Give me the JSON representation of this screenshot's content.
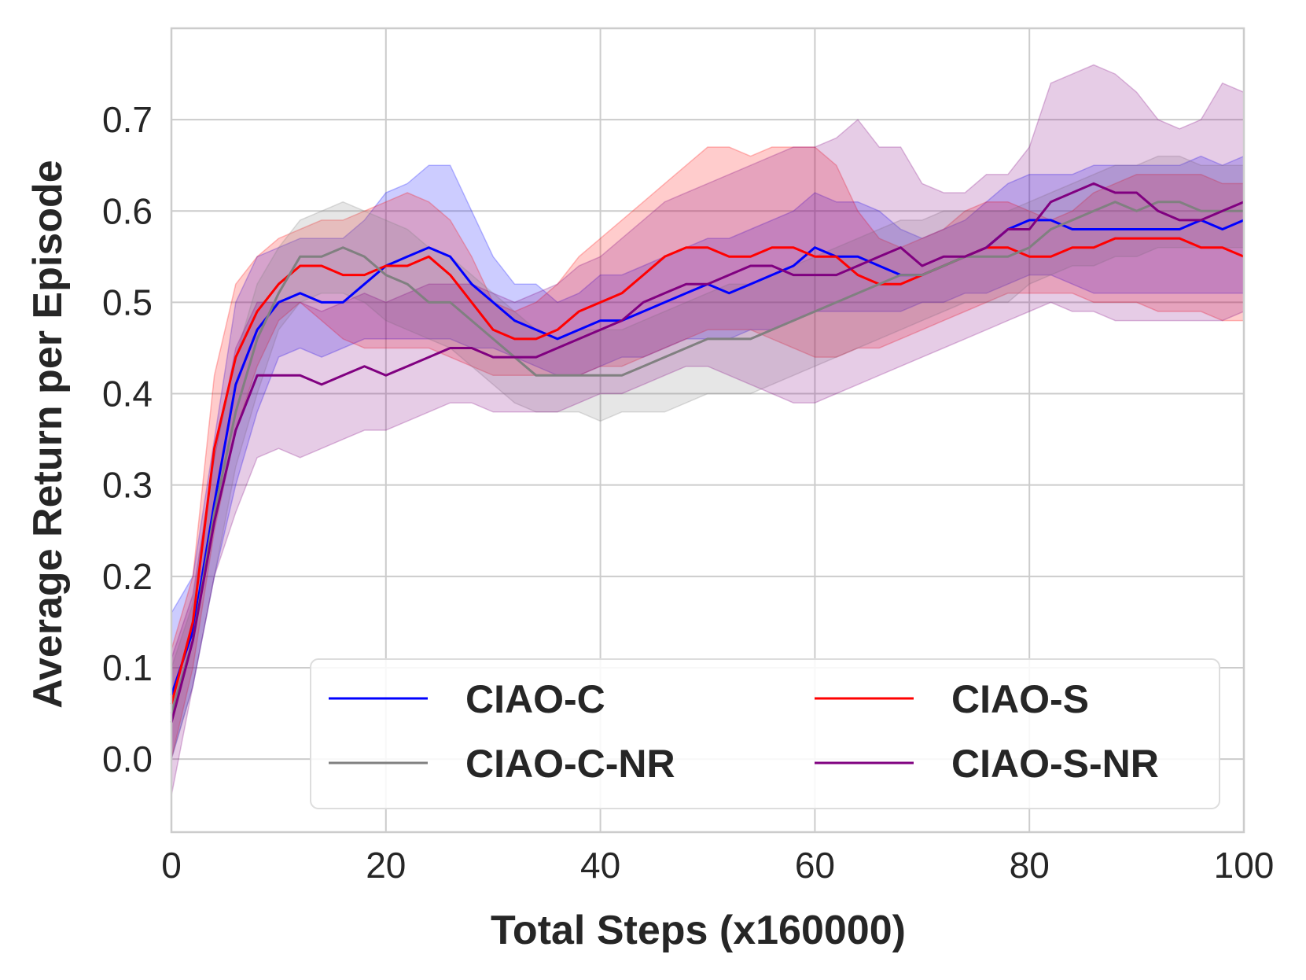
{
  "chart_data": {
    "type": "line",
    "xlabel": "Total Steps (x160000)",
    "ylabel": "Average Return per Episode",
    "xlim": [
      0,
      100
    ],
    "ylim": [
      -0.08,
      0.8
    ],
    "xticks": [
      0,
      20,
      40,
      60,
      80,
      100
    ],
    "xtick_labels": [
      "0",
      "20",
      "40",
      "60",
      "80",
      "100"
    ],
    "yticks": [
      0.0,
      0.1,
      0.2,
      0.3,
      0.4,
      0.5,
      0.6,
      0.7
    ],
    "ytick_labels": [
      "0.0",
      "0.1",
      "0.2",
      "0.3",
      "0.4",
      "0.5",
      "0.6",
      "0.7"
    ],
    "grid": true,
    "legend": {
      "placement": "lower-right",
      "columns": 2
    },
    "series": [
      {
        "name": "CIAO-C",
        "color": "#0000ff",
        "x": [
          0,
          2,
          4,
          6,
          8,
          10,
          12,
          14,
          16,
          18,
          20,
          22,
          24,
          26,
          28,
          30,
          32,
          34,
          36,
          38,
          40,
          42,
          44,
          46,
          48,
          50,
          52,
          54,
          56,
          58,
          60,
          62,
          64,
          66,
          68,
          70,
          72,
          74,
          76,
          78,
          80,
          82,
          84,
          86,
          88,
          90,
          92,
          94,
          96,
          98,
          100
        ],
        "mean": [
          0.07,
          0.14,
          0.28,
          0.41,
          0.47,
          0.5,
          0.51,
          0.5,
          0.5,
          0.52,
          0.54,
          0.55,
          0.56,
          0.55,
          0.52,
          0.5,
          0.48,
          0.47,
          0.46,
          0.47,
          0.48,
          0.48,
          0.49,
          0.5,
          0.51,
          0.52,
          0.51,
          0.52,
          0.53,
          0.54,
          0.56,
          0.55,
          0.55,
          0.54,
          0.53,
          0.53,
          0.54,
          0.55,
          0.56,
          0.58,
          0.59,
          0.59,
          0.58,
          0.58,
          0.58,
          0.58,
          0.58,
          0.58,
          0.59,
          0.58,
          0.59
        ],
        "lower": [
          0.0,
          0.08,
          0.2,
          0.3,
          0.38,
          0.44,
          0.45,
          0.44,
          0.45,
          0.46,
          0.46,
          0.46,
          0.46,
          0.46,
          0.45,
          0.45,
          0.44,
          0.43,
          0.42,
          0.42,
          0.43,
          0.44,
          0.44,
          0.45,
          0.46,
          0.46,
          0.46,
          0.47,
          0.47,
          0.48,
          0.49,
          0.49,
          0.49,
          0.49,
          0.49,
          0.5,
          0.5,
          0.51,
          0.51,
          0.52,
          0.53,
          0.53,
          0.52,
          0.51,
          0.51,
          0.51,
          0.51,
          0.51,
          0.51,
          0.51,
          0.51
        ],
        "upper": [
          0.16,
          0.2,
          0.35,
          0.5,
          0.55,
          0.56,
          0.57,
          0.57,
          0.57,
          0.59,
          0.62,
          0.63,
          0.65,
          0.65,
          0.6,
          0.55,
          0.52,
          0.52,
          0.5,
          0.51,
          0.53,
          0.53,
          0.54,
          0.55,
          0.56,
          0.57,
          0.57,
          0.58,
          0.59,
          0.6,
          0.62,
          0.61,
          0.61,
          0.6,
          0.58,
          0.57,
          0.58,
          0.59,
          0.61,
          0.63,
          0.64,
          0.64,
          0.64,
          0.65,
          0.65,
          0.65,
          0.65,
          0.65,
          0.66,
          0.65,
          0.66
        ]
      },
      {
        "name": "CIAO-S",
        "color": "#ff0000",
        "x": [
          0,
          2,
          4,
          6,
          8,
          10,
          12,
          14,
          16,
          18,
          20,
          22,
          24,
          26,
          28,
          30,
          32,
          34,
          36,
          38,
          40,
          42,
          44,
          46,
          48,
          50,
          52,
          54,
          56,
          58,
          60,
          62,
          64,
          66,
          68,
          70,
          72,
          74,
          76,
          78,
          80,
          82,
          84,
          86,
          88,
          90,
          92,
          94,
          96,
          98,
          100
        ],
        "mean": [
          0.06,
          0.15,
          0.34,
          0.44,
          0.49,
          0.52,
          0.54,
          0.54,
          0.53,
          0.53,
          0.54,
          0.54,
          0.55,
          0.53,
          0.5,
          0.47,
          0.46,
          0.46,
          0.47,
          0.49,
          0.5,
          0.51,
          0.53,
          0.55,
          0.56,
          0.56,
          0.55,
          0.55,
          0.56,
          0.56,
          0.55,
          0.55,
          0.53,
          0.52,
          0.52,
          0.53,
          0.54,
          0.55,
          0.56,
          0.56,
          0.55,
          0.55,
          0.56,
          0.56,
          0.57,
          0.57,
          0.57,
          0.57,
          0.56,
          0.56,
          0.55
        ],
        "lower": [
          0.0,
          0.1,
          0.25,
          0.36,
          0.43,
          0.48,
          0.5,
          0.48,
          0.46,
          0.45,
          0.45,
          0.45,
          0.45,
          0.44,
          0.43,
          0.42,
          0.42,
          0.42,
          0.42,
          0.42,
          0.43,
          0.43,
          0.44,
          0.45,
          0.46,
          0.47,
          0.47,
          0.47,
          0.46,
          0.45,
          0.44,
          0.44,
          0.45,
          0.45,
          0.46,
          0.47,
          0.48,
          0.49,
          0.5,
          0.51,
          0.51,
          0.51,
          0.51,
          0.5,
          0.5,
          0.5,
          0.49,
          0.49,
          0.49,
          0.48,
          0.48
        ],
        "upper": [
          0.12,
          0.2,
          0.42,
          0.52,
          0.55,
          0.57,
          0.58,
          0.59,
          0.59,
          0.6,
          0.61,
          0.62,
          0.61,
          0.59,
          0.55,
          0.5,
          0.49,
          0.5,
          0.52,
          0.55,
          0.57,
          0.59,
          0.61,
          0.63,
          0.65,
          0.67,
          0.67,
          0.66,
          0.67,
          0.67,
          0.67,
          0.65,
          0.6,
          0.57,
          0.56,
          0.57,
          0.58,
          0.6,
          0.61,
          0.61,
          0.6,
          0.59,
          0.6,
          0.62,
          0.63,
          0.64,
          0.64,
          0.64,
          0.64,
          0.63,
          0.63
        ]
      },
      {
        "name": "CIAO-C-NR",
        "color": "#808080",
        "x": [
          0,
          2,
          4,
          6,
          8,
          10,
          12,
          14,
          16,
          18,
          20,
          22,
          24,
          26,
          28,
          30,
          32,
          34,
          36,
          38,
          40,
          42,
          44,
          46,
          48,
          50,
          52,
          54,
          56,
          58,
          60,
          62,
          64,
          66,
          68,
          70,
          72,
          74,
          76,
          78,
          80,
          82,
          84,
          86,
          88,
          90,
          92,
          94,
          96,
          98,
          100
        ],
        "mean": [
          0.05,
          0.13,
          0.27,
          0.38,
          0.46,
          0.51,
          0.55,
          0.55,
          0.56,
          0.55,
          0.53,
          0.52,
          0.5,
          0.5,
          0.48,
          0.46,
          0.44,
          0.42,
          0.42,
          0.42,
          0.42,
          0.42,
          0.43,
          0.44,
          0.45,
          0.46,
          0.46,
          0.46,
          0.47,
          0.48,
          0.49,
          0.5,
          0.51,
          0.52,
          0.53,
          0.53,
          0.54,
          0.55,
          0.55,
          0.55,
          0.56,
          0.58,
          0.59,
          0.6,
          0.61,
          0.6,
          0.61,
          0.61,
          0.6,
          0.6,
          0.6
        ],
        "lower": [
          0.0,
          0.08,
          0.2,
          0.32,
          0.4,
          0.47,
          0.5,
          0.51,
          0.51,
          0.5,
          0.48,
          0.47,
          0.46,
          0.45,
          0.43,
          0.41,
          0.39,
          0.38,
          0.38,
          0.38,
          0.37,
          0.38,
          0.38,
          0.38,
          0.39,
          0.4,
          0.4,
          0.4,
          0.41,
          0.42,
          0.43,
          0.44,
          0.45,
          0.46,
          0.47,
          0.48,
          0.49,
          0.5,
          0.5,
          0.5,
          0.52,
          0.53,
          0.54,
          0.54,
          0.55,
          0.55,
          0.56,
          0.56,
          0.56,
          0.56,
          0.56
        ],
        "upper": [
          0.1,
          0.17,
          0.33,
          0.44,
          0.52,
          0.56,
          0.59,
          0.6,
          0.61,
          0.6,
          0.59,
          0.58,
          0.56,
          0.55,
          0.53,
          0.51,
          0.49,
          0.47,
          0.46,
          0.47,
          0.47,
          0.47,
          0.48,
          0.49,
          0.5,
          0.51,
          0.52,
          0.52,
          0.53,
          0.54,
          0.55,
          0.56,
          0.57,
          0.58,
          0.59,
          0.59,
          0.6,
          0.6,
          0.6,
          0.6,
          0.61,
          0.62,
          0.63,
          0.64,
          0.65,
          0.65,
          0.66,
          0.66,
          0.65,
          0.65,
          0.65
        ]
      },
      {
        "name": "CIAO-S-NR",
        "color": "#800080",
        "x": [
          0,
          2,
          4,
          6,
          8,
          10,
          12,
          14,
          16,
          18,
          20,
          22,
          24,
          26,
          28,
          30,
          32,
          34,
          36,
          38,
          40,
          42,
          44,
          46,
          48,
          50,
          52,
          54,
          56,
          58,
          60,
          62,
          64,
          66,
          68,
          70,
          72,
          74,
          76,
          78,
          80,
          82,
          84,
          86,
          88,
          90,
          92,
          94,
          96,
          98,
          100
        ],
        "mean": [
          0.04,
          0.13,
          0.26,
          0.36,
          0.42,
          0.42,
          0.42,
          0.41,
          0.42,
          0.43,
          0.42,
          0.43,
          0.44,
          0.45,
          0.45,
          0.44,
          0.44,
          0.44,
          0.45,
          0.46,
          0.47,
          0.48,
          0.5,
          0.51,
          0.52,
          0.52,
          0.53,
          0.54,
          0.54,
          0.53,
          0.53,
          0.53,
          0.54,
          0.55,
          0.56,
          0.54,
          0.55,
          0.55,
          0.56,
          0.58,
          0.58,
          0.61,
          0.62,
          0.63,
          0.62,
          0.62,
          0.6,
          0.59,
          0.59,
          0.6,
          0.61
        ],
        "lower": [
          -0.04,
          0.08,
          0.2,
          0.27,
          0.33,
          0.34,
          0.33,
          0.34,
          0.35,
          0.36,
          0.36,
          0.37,
          0.38,
          0.39,
          0.39,
          0.38,
          0.38,
          0.38,
          0.38,
          0.39,
          0.4,
          0.4,
          0.41,
          0.42,
          0.43,
          0.43,
          0.42,
          0.41,
          0.4,
          0.39,
          0.39,
          0.4,
          0.41,
          0.42,
          0.43,
          0.44,
          0.45,
          0.46,
          0.47,
          0.48,
          0.49,
          0.5,
          0.49,
          0.49,
          0.48,
          0.48,
          0.48,
          0.48,
          0.48,
          0.48,
          0.49
        ],
        "upper": [
          0.11,
          0.18,
          0.33,
          0.45,
          0.5,
          0.5,
          0.5,
          0.49,
          0.5,
          0.51,
          0.5,
          0.51,
          0.52,
          0.52,
          0.52,
          0.51,
          0.5,
          0.51,
          0.52,
          0.54,
          0.55,
          0.57,
          0.59,
          0.61,
          0.62,
          0.63,
          0.64,
          0.65,
          0.66,
          0.67,
          0.67,
          0.68,
          0.7,
          0.67,
          0.67,
          0.63,
          0.62,
          0.62,
          0.64,
          0.64,
          0.67,
          0.74,
          0.75,
          0.76,
          0.75,
          0.73,
          0.7,
          0.69,
          0.7,
          0.74,
          0.73
        ]
      }
    ]
  }
}
